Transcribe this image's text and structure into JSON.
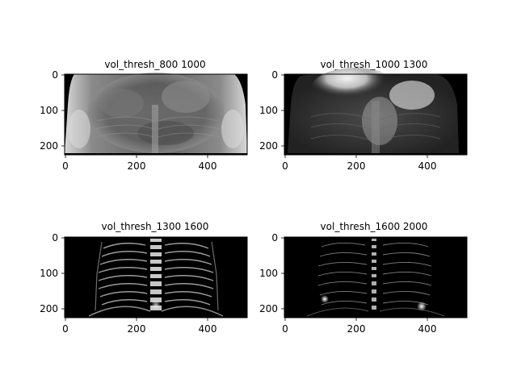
{
  "figure": {
    "background": "#ffffff",
    "colormap": "gray",
    "panels": [
      {
        "title": "vol_thresh_800 1000",
        "content": "frontal projection of torso: soft tissue and organs visible in mid-gray",
        "x_ticks": [
          "0",
          "200",
          "400"
        ],
        "y_ticks": [
          "0",
          "100",
          "200"
        ]
      },
      {
        "title": "vol_thresh_1000 1300",
        "content": "frontal projection: bright organ region at upper center, darker body outline",
        "x_ticks": [
          "0",
          "200",
          "400"
        ],
        "y_ticks": [
          "0",
          "100",
          "200"
        ]
      },
      {
        "title": "vol_thresh_1300 1600",
        "content": "frontal projection: bony structures only, ribcage and spine",
        "x_ticks": [
          "0",
          "200",
          "400"
        ],
        "y_ticks": [
          "0",
          "100",
          "200"
        ]
      },
      {
        "title": "vol_thresh_1600 2000",
        "content": "frontal projection: sparse dense bone, thin rib outlines and spine",
        "x_ticks": [
          "0",
          "200",
          "400"
        ],
        "y_ticks": [
          "0",
          "100",
          "200"
        ]
      }
    ]
  }
}
